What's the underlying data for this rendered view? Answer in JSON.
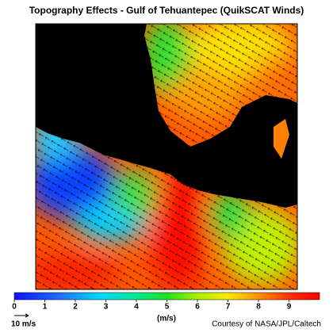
{
  "title": "Topography Effects - Gulf of Tehuantepec (QuikSCAT Winds)",
  "colorbar": {
    "range": [
      0,
      10
    ],
    "ticks": [
      0,
      1,
      2,
      3,
      4,
      5,
      6,
      7,
      8,
      9
    ],
    "label": "(m/s)"
  },
  "reference_arrow": "10 m/s",
  "credit": "Courtesy of NASA/JPL/Caltech"
}
